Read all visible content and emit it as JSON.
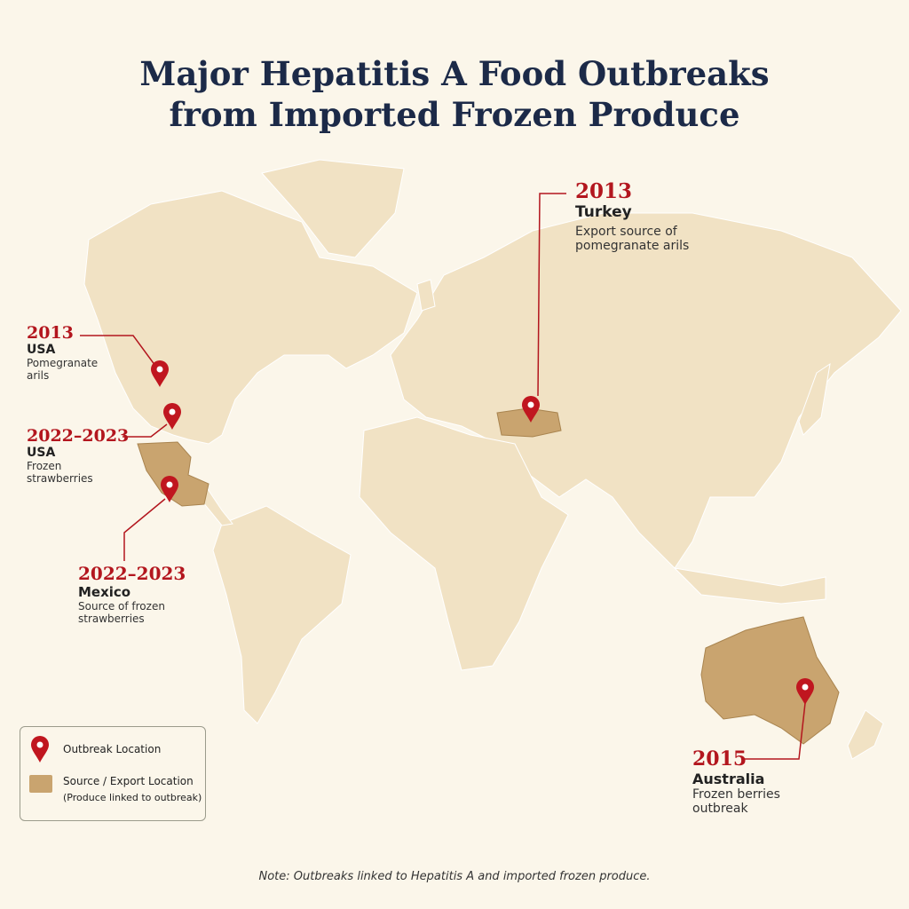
{
  "header": {
    "title_lines": [
      "Major Hepatitis A Food Outbreaks",
      "from Imported Frozen Produce"
    ]
  },
  "callouts": [
    {
      "year": "2013",
      "place": "USA",
      "description": "Pomegranate arils"
    },
    {
      "year": "2022–2023",
      "place": "USA",
      "description": "Frozen strawberries"
    },
    {
      "year": "2022–2023",
      "place": "Mexico",
      "description": "Source of frozen strawberries"
    },
    {
      "year": "2013",
      "place": "Turkey",
      "description": "Export source of pomegranate arils"
    },
    {
      "year": "2015",
      "place": "Australia",
      "description": "Frozen berries outbreak"
    }
  ],
  "legend": {
    "outbreak": "Outbreak Location",
    "source": "Source / Export Location",
    "source_note": "(Produce linked to outbreak)"
  },
  "note": "Note: Outbreaks linked to Hepatitis A and imported frozen produce."
}
